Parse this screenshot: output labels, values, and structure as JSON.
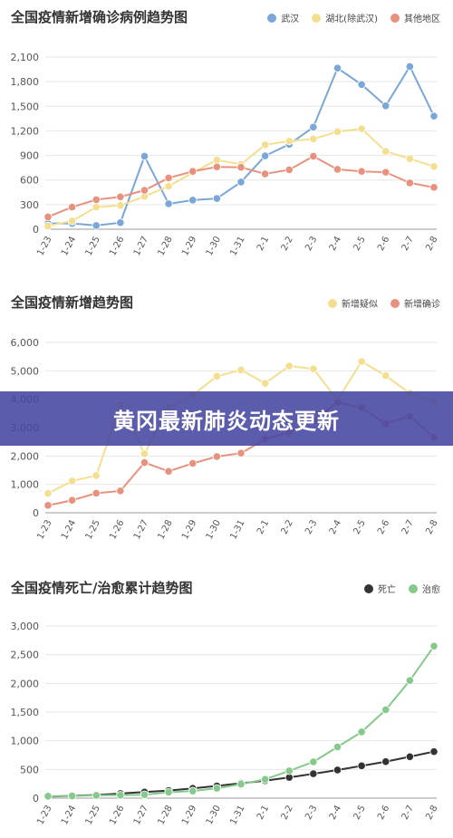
{
  "charts": [
    {
      "title": "全国疫情新增确诊病例趋势图",
      "legend": [
        {
          "label": "武汉",
          "color": "#7aa6d8"
        },
        {
          "label": "湖北(除武汉)",
          "color": "#f3df8f"
        },
        {
          "label": "其他地区",
          "color": "#e8917e"
        }
      ]
    },
    {
      "title": "全国疫情新增趋势图",
      "legend": [
        {
          "label": "新增疑似",
          "color": "#f3df8f"
        },
        {
          "label": "新增确诊",
          "color": "#e8917e"
        }
      ]
    },
    {
      "title": "全国疫情死亡/治愈累计趋势图",
      "legend": [
        {
          "label": "死亡",
          "color": "#333333"
        },
        {
          "label": "治愈",
          "color": "#86c98c"
        }
      ]
    }
  ],
  "banner": {
    "text": "黄冈最新肺炎动态更新"
  },
  "chart_data": [
    {
      "type": "line",
      "title": "全国疫情新增确诊病例趋势图",
      "x": [
        "1-23",
        "1-24",
        "1-25",
        "1-26",
        "1-27",
        "1-28",
        "1-29",
        "1-30",
        "1-31",
        "2-1",
        "2-2",
        "2-3",
        "2-4",
        "2-5",
        "2-6",
        "2-7",
        "2-8"
      ],
      "yticks": [
        "0",
        "300",
        "600",
        "900",
        "1,200",
        "1,500",
        "1,800",
        "2,100"
      ],
      "ylim": [
        0,
        2100
      ],
      "grid": true,
      "legend_position": "top-right",
      "series": [
        {
          "name": "武汉",
          "color": "#7aa6d8",
          "values": [
            70,
            70,
            45,
            80,
            890,
            310,
            355,
            375,
            575,
            895,
            1035,
            1245,
            1965,
            1765,
            1505,
            1985,
            1380
          ]
        },
        {
          "name": "湖北(除武汉)",
          "color": "#f3df8f",
          "values": [
            40,
            100,
            270,
            290,
            400,
            525,
            690,
            845,
            790,
            1030,
            1075,
            1100,
            1190,
            1225,
            950,
            860,
            765
          ]
        },
        {
          "name": "其他地区",
          "color": "#e8917e",
          "values": [
            150,
            270,
            360,
            395,
            475,
            625,
            705,
            760,
            755,
            675,
            725,
            890,
            730,
            705,
            695,
            565,
            510
          ]
        }
      ]
    },
    {
      "type": "line",
      "title": "全国疫情新增趋势图",
      "x": [
        "1-23",
        "1-24",
        "1-25",
        "1-26",
        "1-27",
        "1-28",
        "1-29",
        "1-30",
        "1-31",
        "2-1",
        "2-2",
        "2-3",
        "2-4",
        "2-5",
        "2-6",
        "2-7",
        "2-8"
      ],
      "yticks": [
        "0",
        "1,000",
        "2,000",
        "3,000",
        "4,000",
        "5,000",
        "6,000"
      ],
      "ylim": [
        0,
        6000
      ],
      "grid": true,
      "legend_position": "top-right",
      "series": [
        {
          "name": "新增疑似",
          "color": "#f3df8f",
          "values": [
            680,
            1120,
            1310,
            3800,
            2080,
            3700,
            4150,
            4810,
            5030,
            4560,
            5170,
            5070,
            3970,
            5330,
            4830,
            4210,
            3920
          ]
        },
        {
          "name": "新增确诊",
          "color": "#e8917e",
          "values": [
            260,
            440,
            690,
            770,
            1770,
            1460,
            1740,
            1980,
            2100,
            2590,
            2830,
            3240,
            3890,
            3700,
            3140,
            3400,
            2660
          ]
        }
      ]
    },
    {
      "type": "line",
      "title": "全国疫情死亡/治愈累计趋势图",
      "x": [
        "1-23",
        "1-24",
        "1-25",
        "1-26",
        "1-27",
        "1-28",
        "1-29",
        "1-30",
        "1-31",
        "2-1",
        "2-2",
        "2-3",
        "2-4",
        "2-5",
        "2-6",
        "2-7",
        "2-8"
      ],
      "yticks": [
        "0",
        "500",
        "1,000",
        "1,500",
        "2,000",
        "2,500",
        "3,000"
      ],
      "ylim": [
        0,
        3000
      ],
      "grid": true,
      "legend_position": "top-right",
      "series": [
        {
          "name": "死亡",
          "color": "#333333",
          "values": [
            25,
            41,
            56,
            80,
            106,
            132,
            170,
            213,
            259,
            304,
            361,
            425,
            490,
            563,
            636,
            722,
            811
          ]
        },
        {
          "name": "治愈",
          "color": "#86c98c",
          "values": [
            34,
            38,
            49,
            51,
            60,
            103,
            124,
            171,
            243,
            328,
            475,
            632,
            892,
            1153,
            1540,
            2050,
            2649
          ]
        }
      ]
    }
  ]
}
